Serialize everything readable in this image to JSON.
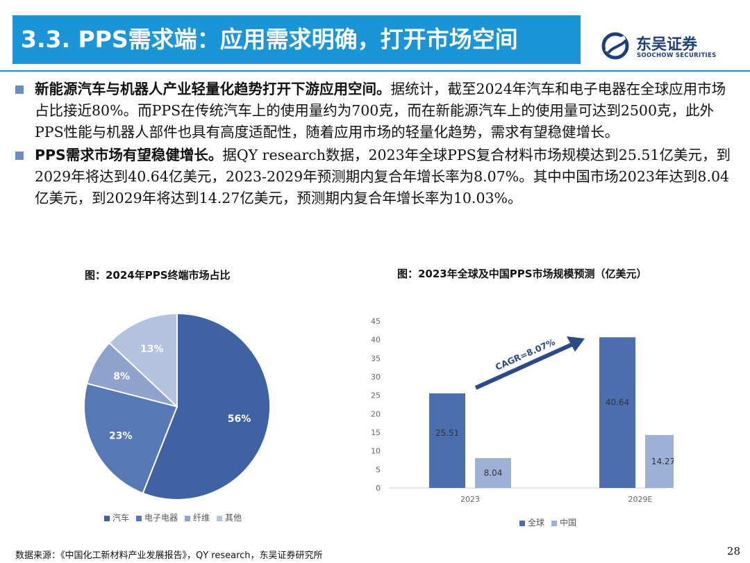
{
  "header": {
    "title": "3.3. PPS需求端：应用需求明确，打开市场空间",
    "logo_name": "东吴证券",
    "logo_sub": "SOOCHOW SECURITIES",
    "accent_color": "#1a96d8"
  },
  "bullets": [
    {
      "lead": "新能源汽车与机器人产业轻量化趋势打开下游应用空间。",
      "body": "据统计，截至2024年汽车和电子电器在全球应用市场占比接近80%。而PPS在传统汽车上的使用量约为700克，而在新能源汽车上的使用量可达到2500克，此外PPS性能与机器人部件也具有高度适配性，随着应用市场的轻量化趋势，需求有望稳健增长。"
    },
    {
      "lead": "PPS需求市场有望稳健增长。",
      "body": "据QY research数据，2023年全球PPS复合材料市场规模达到25.51亿美元，到2029年将达到40.64亿美元，2023-2029年预测期内复合年增长率为8.07%。其中中国市场2023年达到8.04亿美元，到2029年将达到14.27亿美元，预测期内复合年增长率为10.03%。"
    }
  ],
  "captions": {
    "pie": "图：2024年PPS终端市场占比",
    "bar": "图：2023年全球及中国PPS市场规模预测（亿美元）"
  },
  "chart_data": [
    {
      "type": "pie",
      "title": "",
      "categories": [
        "汽车",
        "电子电器",
        "纤维",
        "其他"
      ],
      "values": [
        56,
        23,
        8,
        13
      ],
      "labels": [
        "56%",
        "23%",
        "8%",
        "13%"
      ],
      "colors": [
        "#3f62a4",
        "#5679b6",
        "#8da3cd",
        "#b3c2de"
      ],
      "legend_placement": "bottom"
    },
    {
      "type": "bar",
      "title": "",
      "categories": [
        "2023",
        "2029E"
      ],
      "series": [
        {
          "name": "全球",
          "values": [
            25.51,
            40.64
          ],
          "labels": [
            "25.51",
            "40.64"
          ],
          "color": "#4a6eae"
        },
        {
          "name": "中国",
          "values": [
            8.04,
            14.27
          ],
          "labels": [
            "8.04",
            "14.27"
          ],
          "color": "#9db1d7"
        }
      ],
      "ylim": [
        0,
        45
      ],
      "yticks": [
        "0",
        "5",
        "10",
        "15",
        "20",
        "25",
        "30",
        "35",
        "40",
        "45"
      ],
      "annotation": "CAGR=8.07%",
      "grid": false,
      "legend_placement": "bottom"
    }
  ],
  "footer": {
    "source": "数据来源：《中国化工新材料产业发展报告》，QY research，东吴证券研究所",
    "page": "28"
  }
}
